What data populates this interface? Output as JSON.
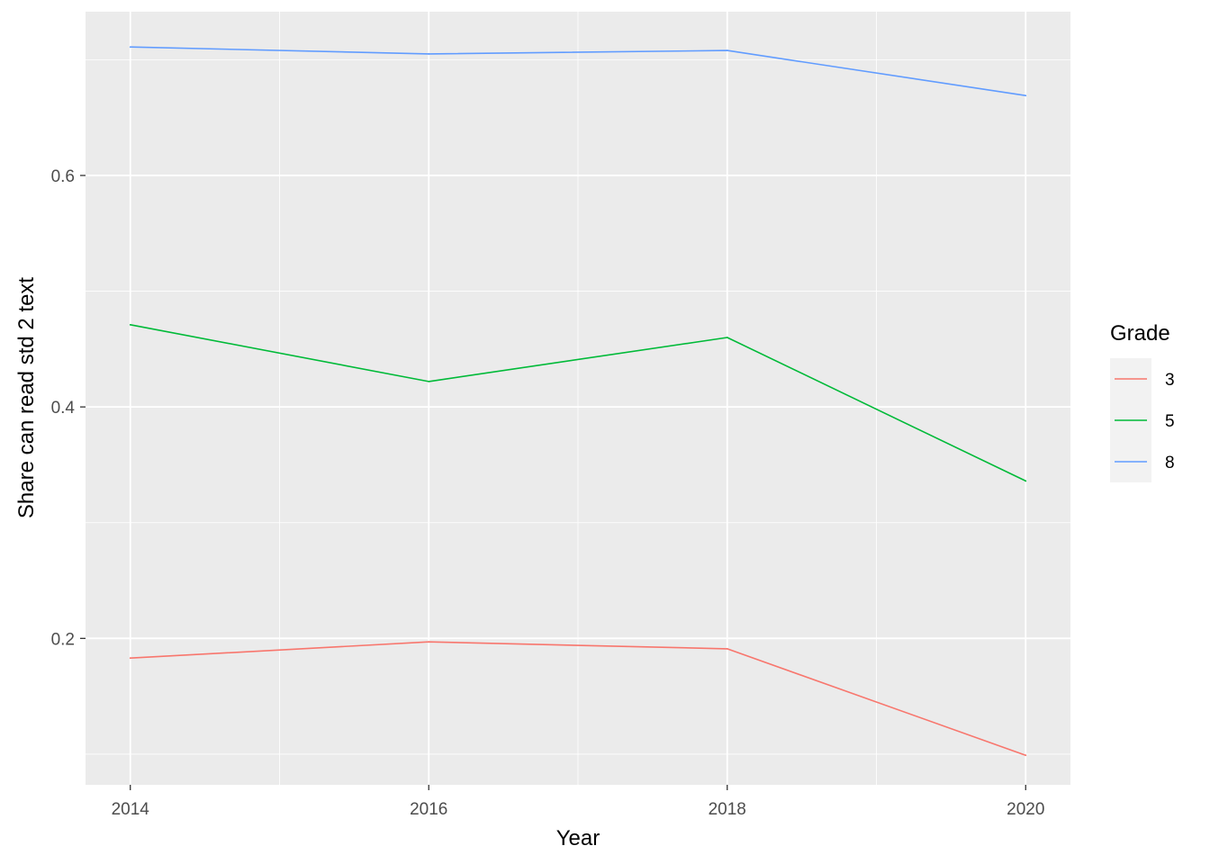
{
  "chart_data": {
    "type": "line",
    "title": "",
    "xlabel": "Year",
    "ylabel": "Share can read std 2 text",
    "x": [
      2014,
      2016,
      2018,
      2020
    ],
    "x_ticks": [
      2014,
      2016,
      2018,
      2020
    ],
    "x_tick_labels": [
      "2014",
      "2016",
      "2018",
      "2020"
    ],
    "y_ticks": [
      0.2,
      0.4,
      0.6
    ],
    "y_tick_labels": [
      "0.2",
      "0.4",
      "0.6"
    ],
    "xlim": [
      2013.7,
      2020.3
    ],
    "ylim": [
      0.0735,
      0.7415
    ],
    "grid": true,
    "legend": {
      "title": "Grade",
      "position": "right"
    },
    "series": [
      {
        "name": "3",
        "color": "#F8766D",
        "values": [
          0.183,
          0.197,
          0.191,
          0.099
        ]
      },
      {
        "name": "5",
        "color": "#00BA38",
        "values": [
          0.471,
          0.422,
          0.46,
          0.336
        ]
      },
      {
        "name": "8",
        "color": "#619CFF",
        "values": [
          0.711,
          0.705,
          0.708,
          0.669
        ]
      }
    ]
  }
}
